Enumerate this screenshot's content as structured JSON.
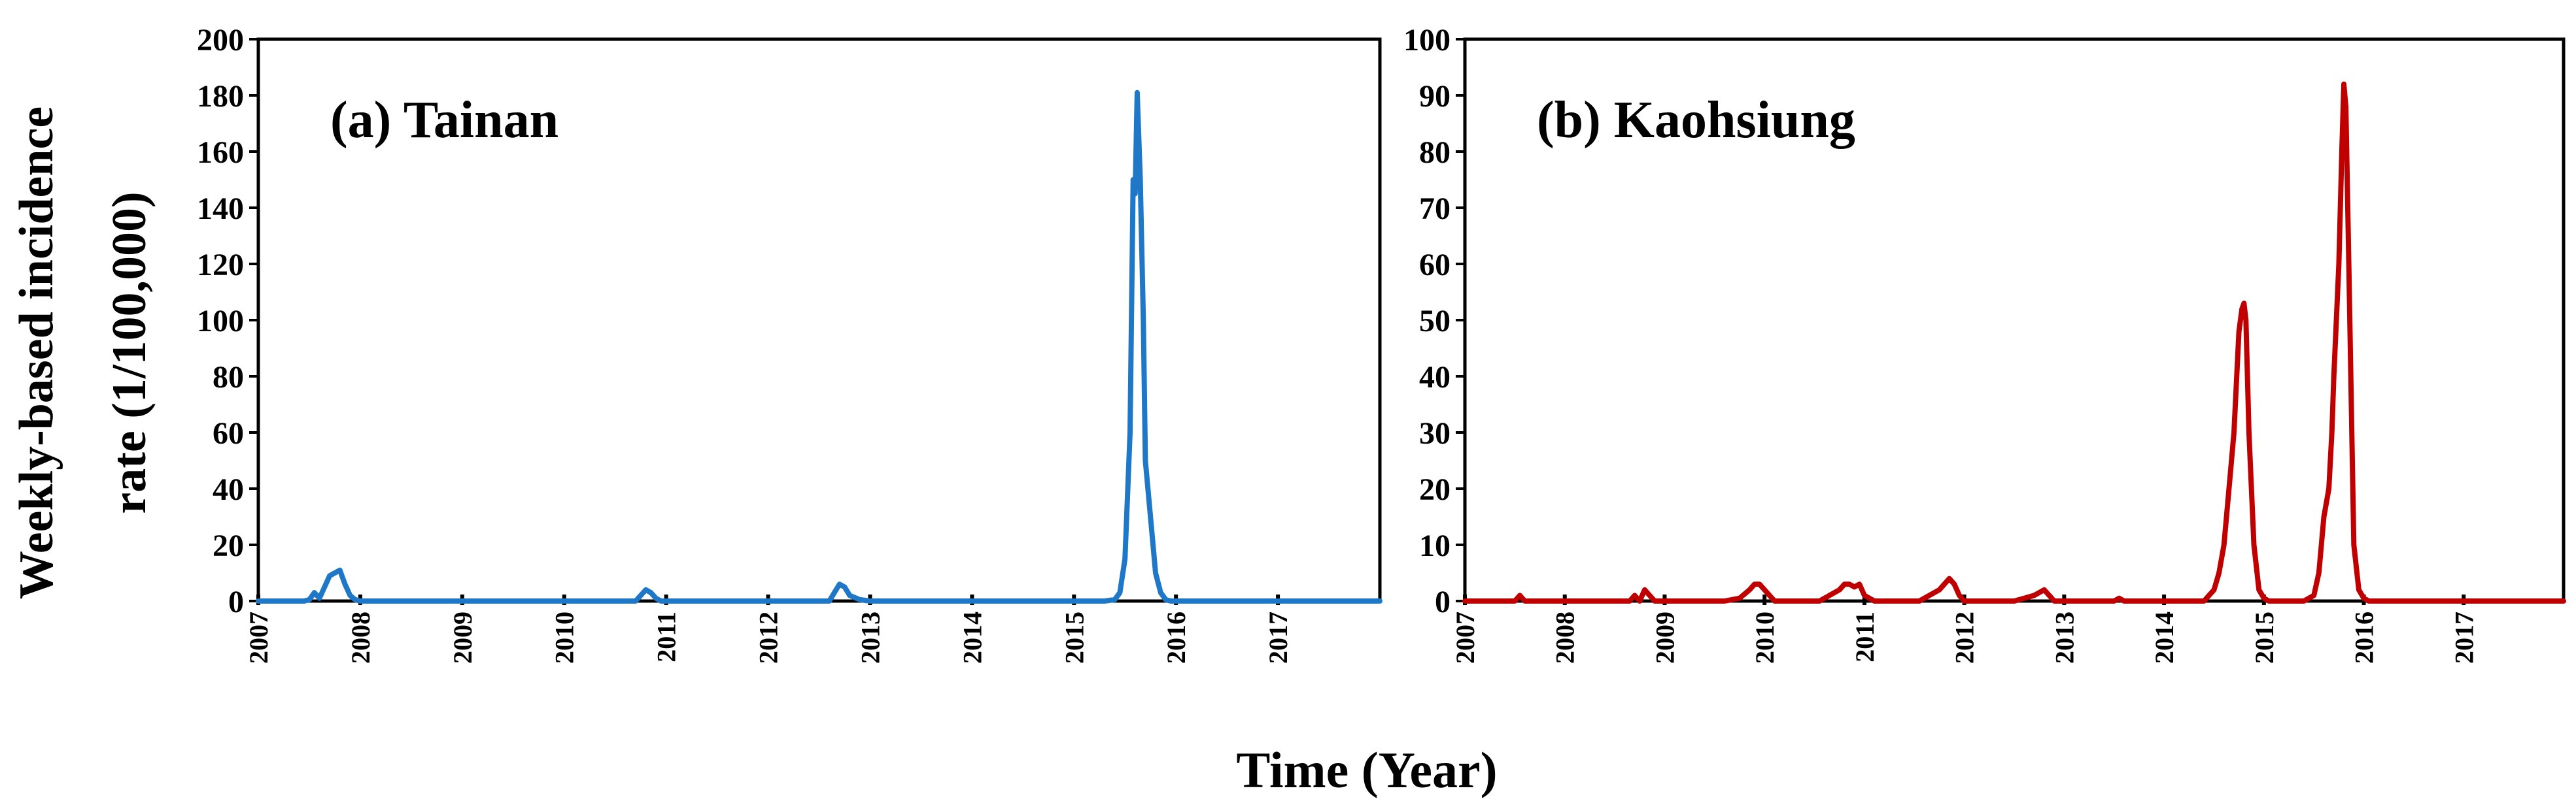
{
  "ylabel_line1": "Weekly-based incidence",
  "ylabel_line2": "rate (1/100,000)",
  "xlabel": "Time (Year)",
  "chart_data": [
    {
      "type": "line",
      "title": "(a) Tainan",
      "color": "#1f77c8",
      "ylim": [
        0,
        200
      ],
      "yticks": [
        0,
        20,
        40,
        60,
        80,
        100,
        120,
        140,
        160,
        180,
        200
      ],
      "xlim": [
        2007,
        2018
      ],
      "xticks": [
        "2007",
        "2008",
        "2009",
        "2010",
        "2011",
        "2012",
        "2013",
        "2014",
        "2015",
        "2016",
        "2017"
      ],
      "series": [
        {
          "name": "Tainan",
          "x": [
            2007.0,
            2007.45,
            2007.5,
            2007.55,
            2007.6,
            2007.65,
            2007.7,
            2007.75,
            2007.8,
            2007.85,
            2007.9,
            2007.95,
            2008.0,
            2010.7,
            2010.75,
            2010.8,
            2010.85,
            2010.9,
            2010.95,
            2012.6,
            2012.65,
            2012.7,
            2012.75,
            2012.8,
            2012.9,
            2013.0,
            2015.3,
            2015.4,
            2015.45,
            2015.5,
            2015.55,
            2015.58,
            2015.6,
            2015.62,
            2015.65,
            2015.68,
            2015.7,
            2015.75,
            2015.8,
            2015.85,
            2015.9,
            2015.95,
            2016.0,
            2018.0
          ],
          "y": [
            0,
            0,
            0.5,
            3,
            1,
            5,
            9,
            10,
            11,
            6,
            2,
            0.5,
            0,
            0,
            2,
            4,
            3,
            1,
            0,
            0,
            3,
            6,
            5,
            2,
            0.5,
            0,
            0,
            0.5,
            3,
            15,
            60,
            150,
            145,
            181,
            150,
            100,
            50,
            30,
            10,
            3,
            0.5,
            0,
            0,
            0
          ]
        }
      ]
    },
    {
      "type": "line",
      "title": "(b) Kaohsiung",
      "color": "#c00000",
      "ylim": [
        0,
        100
      ],
      "yticks": [
        0,
        10,
        20,
        30,
        40,
        50,
        60,
        70,
        80,
        90,
        100
      ],
      "xlim": [
        2007,
        2018
      ],
      "xticks": [
        "2007",
        "2008",
        "2009",
        "2010",
        "2011",
        "2012",
        "2013",
        "2014",
        "2015",
        "2016",
        "2017"
      ],
      "series": [
        {
          "name": "Kaohsiung",
          "x": [
            2007.0,
            2007.5,
            2007.55,
            2007.6,
            2008.0,
            2008.65,
            2008.7,
            2008.75,
            2008.8,
            2008.85,
            2008.9,
            2009.6,
            2009.75,
            2009.85,
            2009.9,
            2009.95,
            2010.0,
            2010.05,
            2010.1,
            2010.55,
            2010.65,
            2010.75,
            2010.8,
            2010.85,
            2010.9,
            2010.95,
            2011.0,
            2011.1,
            2011.55,
            2011.65,
            2011.75,
            2011.8,
            2011.85,
            2011.9,
            2011.95,
            2012.0,
            2012.5,
            2012.6,
            2012.7,
            2012.8,
            2012.85,
            2012.9,
            2013.5,
            2013.55,
            2013.6,
            2014.4,
            2014.5,
            2014.55,
            2014.6,
            2014.65,
            2014.7,
            2014.75,
            2014.78,
            2014.8,
            2014.82,
            2014.85,
            2014.9,
            2014.95,
            2015.0,
            2015.05,
            2015.4,
            2015.5,
            2015.55,
            2015.6,
            2015.65,
            2015.68,
            2015.7,
            2015.75,
            2015.78,
            2015.8,
            2015.82,
            2015.85,
            2015.88,
            2015.9,
            2015.95,
            2016.0,
            2016.05,
            2018.0
          ],
          "y": [
            0,
            0,
            1,
            0,
            0,
            0,
            1,
            0,
            2,
            1,
            0,
            0,
            0.5,
            2,
            3,
            3,
            2,
            1,
            0,
            0,
            1,
            2,
            3,
            3,
            2.5,
            3,
            1,
            0,
            0,
            1,
            2,
            3,
            4,
            3,
            1,
            0,
            0,
            0.5,
            1,
            2,
            1,
            0,
            0,
            0.5,
            0,
            0,
            2,
            5,
            10,
            20,
            30,
            48,
            52,
            53,
            50,
            30,
            10,
            2,
            0.5,
            0,
            0,
            1,
            5,
            15,
            20,
            30,
            40,
            60,
            80,
            92,
            88,
            60,
            30,
            10,
            2,
            0.5,
            0,
            0
          ]
        }
      ]
    }
  ]
}
